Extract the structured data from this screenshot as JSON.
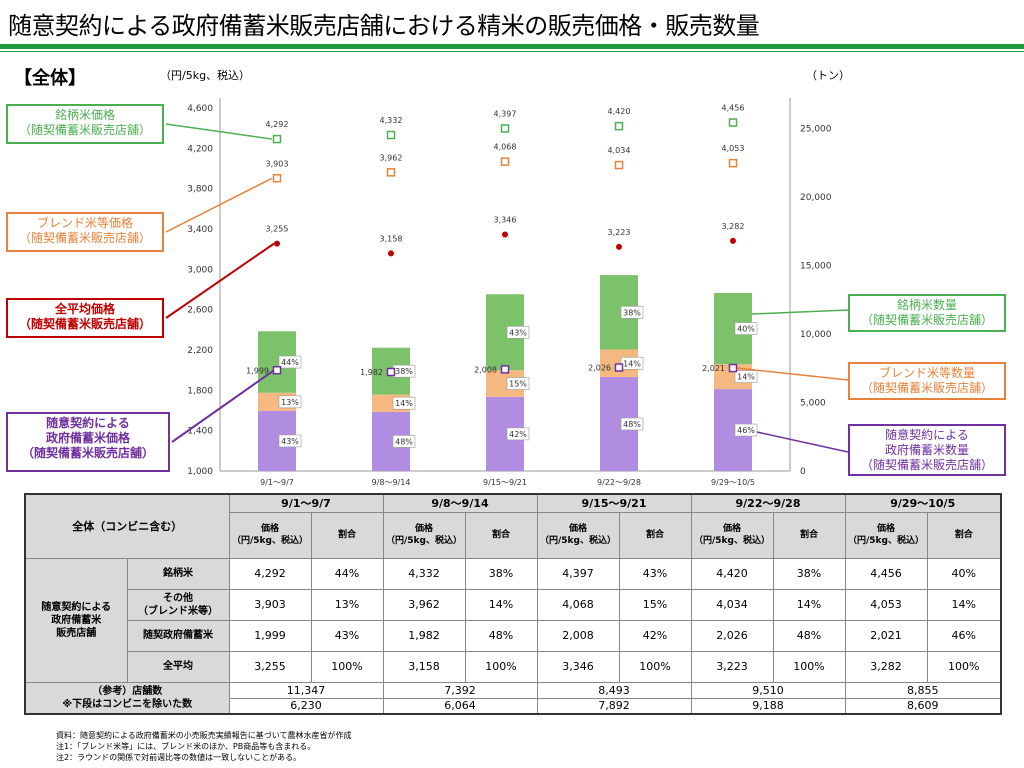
{
  "page": {
    "title": "随意契約による政府備蓄米販売店舗における精米の販売価格・販売数量",
    "section": "【全体】",
    "unit_left": "（円/5kg、税込）",
    "unit_right": "（トン）"
  },
  "colors": {
    "title_rule": "#1e9a3a",
    "brand": "#7cc26a",
    "blend": "#f5b880",
    "gov": "#b08de0",
    "brand_line": "#4caf50",
    "blend_line": "#e8823a",
    "avg_line": "#c00000",
    "gov_line": "#7030a0"
  },
  "callouts": {
    "brand_price": [
      "銘柄米価格",
      "（随契備蓄米販売店舗）"
    ],
    "blend_price": [
      "ブレンド米等価格",
      "（随契備蓄米販売店舗）"
    ],
    "avg_price": [
      "全平均価格",
      "（随契備蓄米販売店舗）"
    ],
    "gov_price": [
      "随意契約による",
      "政府備蓄米価格",
      "（随契備蓄米販売店舗）"
    ],
    "brand_qty": [
      "銘柄米数量",
      "（随契備蓄米販売店舗）"
    ],
    "blend_qty": [
      "ブレンド米等数量",
      "（随契備蓄米販売店舗）"
    ],
    "gov_qty": [
      "随意契約による",
      "政府備蓄米数量",
      "（随契備蓄米販売店舗）"
    ]
  },
  "chart_data": {
    "type": "bar+scatter",
    "categories": [
      "9/1～9/7",
      "9/8～9/14",
      "9/15～9/21",
      "9/22～9/28",
      "9/29～10/5"
    ],
    "left_axis": {
      "min": 1000,
      "max": 4600,
      "ticks": [
        "1,000",
        "1,400",
        "1,800",
        "2,200",
        "2,600",
        "3,000",
        "3,400",
        "3,800",
        "4,200",
        "4,600"
      ]
    },
    "right_axis": {
      "min": 0,
      "max": 26500,
      "ticks": [
        "0",
        "5,000",
        "10,000",
        "15,000",
        "20,000",
        "25,000"
      ]
    },
    "bar_totals": [
      10200,
      9000,
      12900,
      14300,
      13000
    ],
    "bar_series": [
      {
        "name": "随意契約による政府備蓄米数量",
        "shares": [
          43,
          48,
          42,
          48,
          46
        ],
        "labels": [
          "43%",
          "48%",
          "42%",
          "48%",
          "46%"
        ]
      },
      {
        "name": "ブレンド米等数量",
        "shares": [
          13,
          14,
          15,
          14,
          14
        ],
        "labels": [
          "13%",
          "14%",
          "15%",
          "14%",
          "14%"
        ]
      },
      {
        "name": "銘柄米数量",
        "shares": [
          44,
          38,
          43,
          38,
          40
        ],
        "labels": [
          "44%",
          "38%",
          "43%",
          "38%",
          "40%"
        ]
      }
    ],
    "price_series": [
      {
        "name": "銘柄米価格",
        "values": [
          4292,
          4332,
          4397,
          4420,
          4456
        ],
        "labels": [
          "4,292",
          "4,332",
          "4,397",
          "4,420",
          "4,456"
        ]
      },
      {
        "name": "ブレンド米等価格",
        "values": [
          3903,
          3962,
          4068,
          4034,
          4053
        ],
        "labels": [
          "3,903",
          "3,962",
          "4,068",
          "4,034",
          "4,053"
        ]
      },
      {
        "name": "全平均価格",
        "values": [
          3255,
          3158,
          3346,
          3223,
          3282
        ],
        "labels": [
          "3,255",
          "3,158",
          "3,346",
          "3,223",
          "3,282"
        ]
      },
      {
        "name": "随意契約による政府備蓄米価格",
        "values": [
          1999,
          1982,
          2008,
          2026,
          2021
        ],
        "labels": [
          "1,999",
          "1,982",
          "2,008",
          "2,026",
          "2,021"
        ]
      }
    ]
  },
  "table": {
    "corner": "全体（コンビニ含む）",
    "periods": [
      "9/1～9/7",
      "9/8～9/14",
      "9/15～9/21",
      "9/22～9/28",
      "9/29～10/5"
    ],
    "sub_price": "価格",
    "sub_price_unit": "（円/5kg、税込）",
    "sub_share": "割合",
    "group_label": [
      "随意契約による",
      "政府備蓄米",
      "販売店舗"
    ],
    "rows": [
      {
        "label": "銘柄米",
        "cells": [
          "4,292",
          "44%",
          "4,332",
          "38%",
          "4,397",
          "43%",
          "4,420",
          "38%",
          "4,456",
          "40%"
        ]
      },
      {
        "label": "その他",
        "label2": "（ブレンド米等）",
        "cells": [
          "3,903",
          "13%",
          "3,962",
          "14%",
          "4,068",
          "15%",
          "4,034",
          "14%",
          "4,053",
          "14%"
        ]
      },
      {
        "label": "随契政府備蓄米",
        "cells": [
          "1,999",
          "43%",
          "1,982",
          "48%",
          "2,008",
          "42%",
          "2,026",
          "48%",
          "2,021",
          "46%"
        ]
      },
      {
        "label": "全平均",
        "cells": [
          "3,255",
          "100%",
          "3,158",
          "100%",
          "3,346",
          "100%",
          "3,223",
          "100%",
          "3,282",
          "100%"
        ]
      }
    ],
    "ref_label": "（参考）店舗数",
    "ref_label2": "※下段はコンビニを除いた数",
    "stores": [
      "11,347",
      "7,392",
      "8,493",
      "9,510",
      "8,855"
    ],
    "stores_ex": [
      "6,230",
      "6,064",
      "7,892",
      "9,188",
      "8,609"
    ]
  },
  "notes": [
    "資料：随意契約による政府備蓄米の小売販売実績報告に基づいて農林水産省が作成",
    "注1：「ブレンド米等」には、ブレンド米のほか、PB商品等も含まれる。",
    "注2：ラウンドの関係で対前週比等の数値は一致しないことがある。"
  ]
}
